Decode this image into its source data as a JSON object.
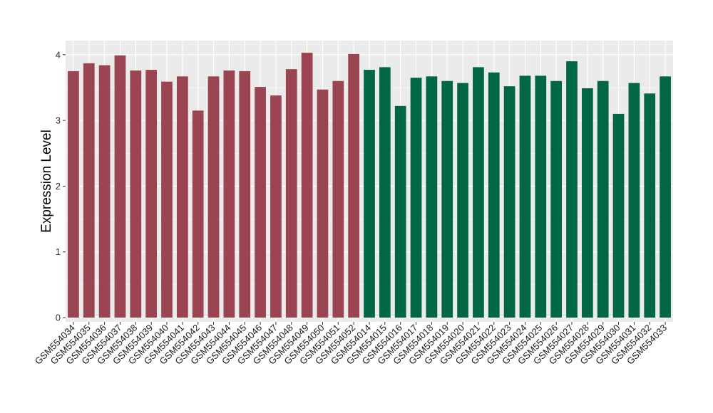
{
  "chart_data": {
    "type": "bar",
    "title": "",
    "xlabel": "",
    "ylabel": "Expression Level",
    "ylim": [
      0,
      4.15
    ],
    "yticks": [
      0,
      1,
      2,
      3,
      4
    ],
    "grid": true,
    "legend": "none",
    "panel_background": "#ebebeb",
    "categories": [
      "GSM554034",
      "GSM554035",
      "GSM554036",
      "GSM554037",
      "GSM554038",
      "GSM554039",
      "GSM554040",
      "GSM554041",
      "GSM554042",
      "GSM554043",
      "GSM554044",
      "GSM554045",
      "GSM554046",
      "GSM554047",
      "GSM554048",
      "GSM554049",
      "GSM554050",
      "GSM554051",
      "GSM554052",
      "GSM554014",
      "GSM554015",
      "GSM554016",
      "GSM554017",
      "GSM554018",
      "GSM554019",
      "GSM554020",
      "GSM554021",
      "GSM554022",
      "GSM554023",
      "GSM554024",
      "GSM554025",
      "GSM554026",
      "GSM554027",
      "GSM554028",
      "GSM554029",
      "GSM554030",
      "GSM554031",
      "GSM554032",
      "GSM554033"
    ],
    "values": [
      3.75,
      3.87,
      3.84,
      3.99,
      3.76,
      3.77,
      3.59,
      3.67,
      3.15,
      3.67,
      3.76,
      3.75,
      3.51,
      3.38,
      3.78,
      4.03,
      3.47,
      3.6,
      4.01,
      3.77,
      3.81,
      3.22,
      3.65,
      3.67,
      3.6,
      3.57,
      3.81,
      3.73,
      3.52,
      3.68,
      3.68,
      3.6,
      3.9,
      3.49,
      3.6,
      3.1,
      3.57,
      3.41,
      3.67
    ],
    "group_colors": [
      "#9b4452",
      "#006644"
    ],
    "groups": [
      0,
      0,
      0,
      0,
      0,
      0,
      0,
      0,
      0,
      0,
      0,
      0,
      0,
      0,
      0,
      0,
      0,
      0,
      0,
      1,
      1,
      1,
      1,
      1,
      1,
      1,
      1,
      1,
      1,
      1,
      1,
      1,
      1,
      1,
      1,
      1,
      1,
      1,
      1
    ]
  }
}
